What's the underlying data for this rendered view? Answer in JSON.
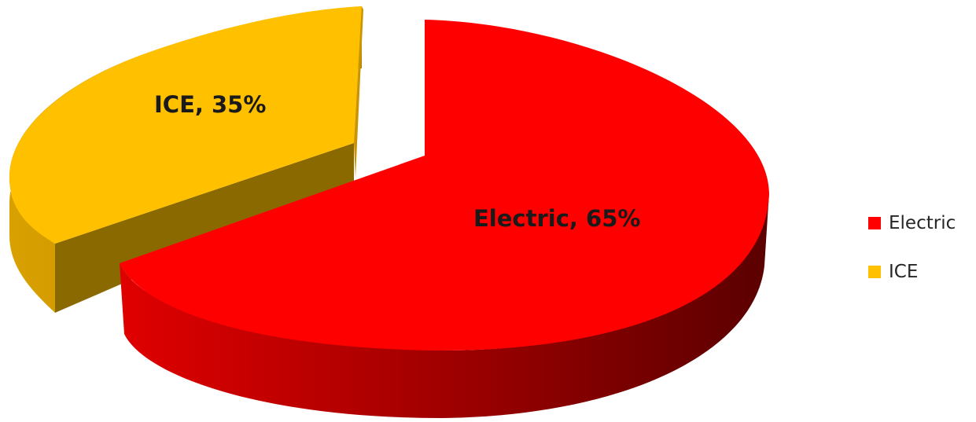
{
  "chart_data": {
    "type": "pie",
    "style": "3d-exploded",
    "title": "",
    "legend_position": "right",
    "slices": [
      {
        "name": "Electric",
        "value": 65,
        "label": "Electric, 65%",
        "color": "#ff0000",
        "side_color": "#8b0000"
      },
      {
        "name": "ICE",
        "value": 35,
        "label": "ICE, 35%",
        "color": "#ffc000",
        "side_color": "#b38600"
      }
    ]
  }
}
